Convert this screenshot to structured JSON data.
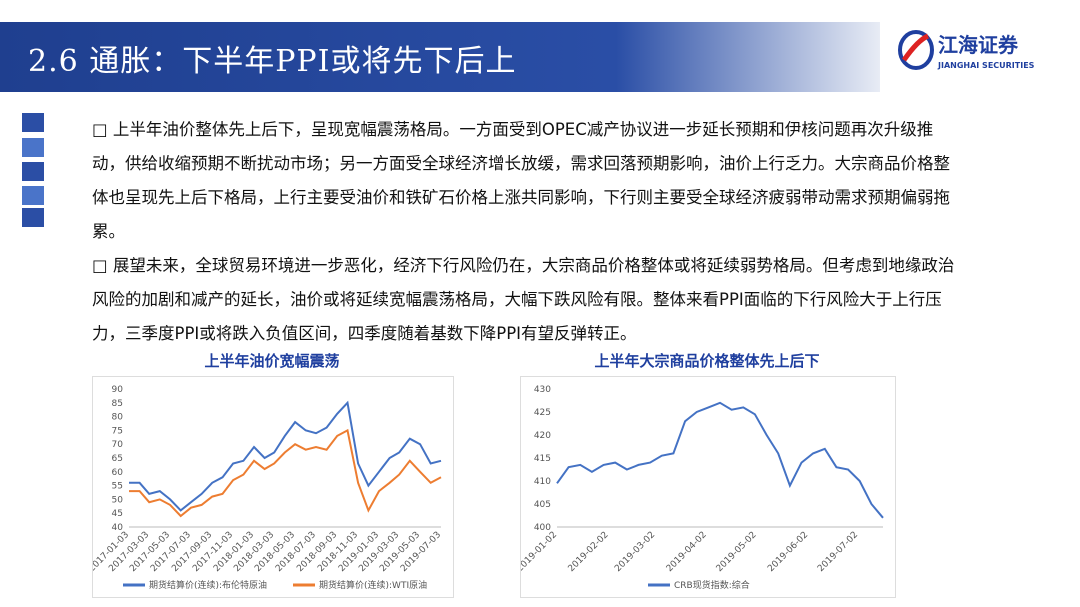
{
  "header": {
    "title": "2.6 通胀：下半年PPI或将先下后上",
    "logo": "江海证券",
    "logo_en": "JIANGHAI SECURITIES"
  },
  "bullets": [
    "上半年油价整体先上后下，呈现宽幅震荡格局。一方面受到OPEC减产协议进一步延长预期和伊核问题再次升级推动，供给收缩预期不断扰动市场；另一方面受全球经济增长放缓，需求回落预期影响，油价上行乏力。大宗商品价格整体也呈现先上后下格局，上行主要受油价和铁矿石价格上涨共同影响，下行则主要受全球经济疲弱带动需求预期偏弱拖累。",
    "展望未来，全球贸易环境进一步恶化，经济下行风险仍在，大宗商品价格整体或将延续弱势格局。但考虑到地缘政治风险的加剧和减产的延长，油价或将延续宽幅震荡格局，大幅下跌风险有限。整体来看PPI面临的下行风险大于上行压力，三季度PPI或将跌入负值区间，四季度随着基数下降PPI有望反弹转正。"
  ],
  "chart_data": [
    {
      "type": "line",
      "title": "上半年油价宽幅震荡",
      "x": [
        "2017-01-03",
        "2017-02-03",
        "2017-03-03",
        "2017-04-03",
        "2017-05-03",
        "2017-06-03",
        "2017-07-03",
        "2017-08-03",
        "2017-09-03",
        "2017-10-03",
        "2017-11-03",
        "2017-12-03",
        "2018-01-03",
        "2018-02-03",
        "2018-03-03",
        "2018-04-03",
        "2018-05-03",
        "2018-06-03",
        "2018-07-03",
        "2018-08-03",
        "2018-09-03",
        "2018-10-03",
        "2018-11-03",
        "2018-12-03",
        "2019-01-03",
        "2019-02-03",
        "2019-03-03",
        "2019-04-03",
        "2019-05-03",
        "2019-06-03",
        "2019-07-03"
      ],
      "series": [
        {
          "name": "期货结算价(连续):布伦特原油",
          "color": "#4472c4",
          "values": [
            56,
            56,
            52,
            53,
            50,
            46,
            49,
            52,
            56,
            58,
            63,
            64,
            69,
            65,
            67,
            73,
            78,
            75,
            74,
            76,
            81,
            85,
            63,
            55,
            60,
            65,
            67,
            72,
            70,
            63,
            64
          ]
        },
        {
          "name": "期货结算价(连续):WTI原油",
          "color": "#ed7d31",
          "values": [
            53,
            53,
            49,
            50,
            48,
            44,
            47,
            48,
            51,
            52,
            57,
            59,
            64,
            61,
            63,
            67,
            70,
            68,
            69,
            68,
            73,
            75,
            56,
            46,
            53,
            56,
            59,
            64,
            60,
            56,
            58
          ]
        }
      ],
      "ylim": [
        40,
        90
      ],
      "yticks": [
        40,
        45,
        50,
        55,
        60,
        65,
        70,
        75,
        80,
        85,
        90
      ],
      "xticks": [
        "2017-01-03",
        "2017-03-03",
        "2017-05-03",
        "2017-07-03",
        "2017-09-03",
        "2017-11-03",
        "2018-01-03",
        "2018-03-03",
        "2018-05-03",
        "2018-07-03",
        "2018-09-03",
        "2018-11-03",
        "2019-01-03",
        "2019-03-03",
        "2019-05-03",
        "2019-07-03"
      ]
    },
    {
      "type": "line",
      "title": "上半年大宗商品价格整体先上后下",
      "x": [
        "2019-01-02",
        "2019-01-09",
        "2019-01-16",
        "2019-01-23",
        "2019-01-30",
        "2019-02-06",
        "2019-02-13",
        "2019-02-20",
        "2019-02-27",
        "2019-03-06",
        "2019-03-13",
        "2019-03-20",
        "2019-03-27",
        "2019-04-03",
        "2019-04-10",
        "2019-04-17",
        "2019-04-24",
        "2019-05-01",
        "2019-05-08",
        "2019-05-15",
        "2019-05-22",
        "2019-05-29",
        "2019-06-05",
        "2019-06-12",
        "2019-06-19",
        "2019-06-26",
        "2019-07-03",
        "2019-07-10",
        "2019-07-17"
      ],
      "series": [
        {
          "name": "CRB现货指数:综合",
          "color": "#4472c4",
          "values": [
            409.5,
            413,
            413.5,
            412,
            413.5,
            414,
            412.5,
            413.5,
            414,
            415.5,
            416,
            423,
            425,
            426,
            427,
            425.5,
            426,
            424.5,
            420,
            416,
            409,
            414,
            416,
            417,
            413,
            412.5,
            410,
            405,
            402
          ]
        }
      ],
      "ylim": [
        400,
        430
      ],
      "yticks": [
        400,
        405,
        410,
        415,
        420,
        425,
        430
      ],
      "xticks": [
        "2019-01-02",
        "2019-02-02",
        "2019-03-02",
        "2019-04-02",
        "2019-05-02",
        "2019-06-02",
        "2019-07-02"
      ]
    }
  ]
}
